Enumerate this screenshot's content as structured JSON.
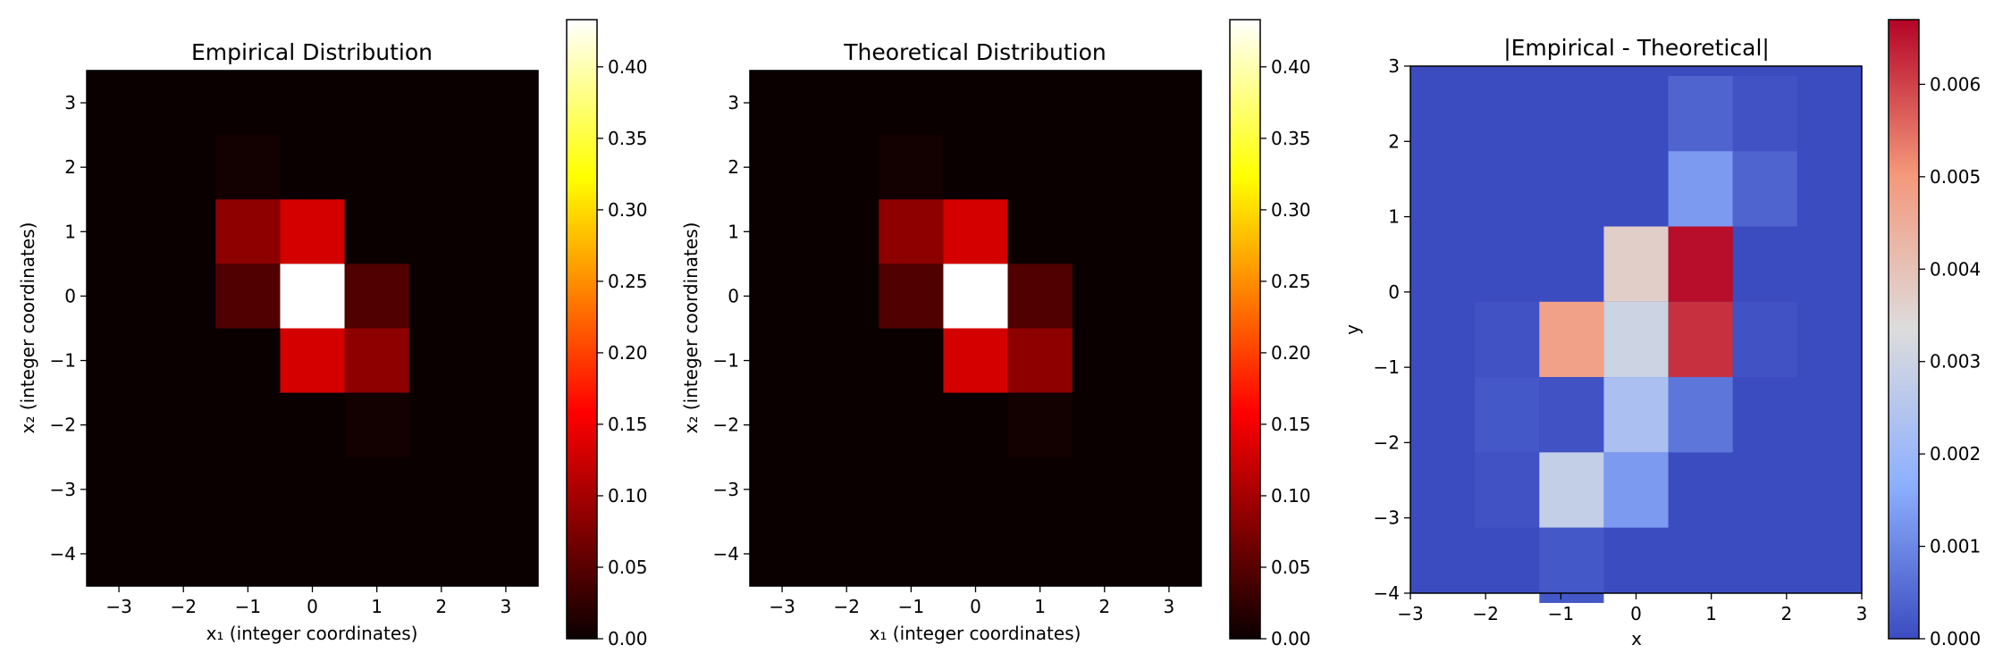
{
  "chart_data": [
    {
      "type": "heatmap",
      "title": "Empirical Distribution",
      "xlabel": "x₁ (integer coordinates)",
      "ylabel": "x₂ (integer coordinates)",
      "xlim": [
        -3.5,
        3.5
      ],
      "ylim": [
        -4.5,
        3.5
      ],
      "xticks": [
        -3,
        -2,
        -1,
        0,
        1,
        2,
        3
      ],
      "yticks": [
        -4,
        -3,
        -2,
        -1,
        0,
        1,
        2,
        3
      ],
      "colormap": "hot",
      "colorbar": {
        "min": 0.0,
        "max": 0.433,
        "ticks": [
          "0.00",
          "0.05",
          "0.10",
          "0.15",
          "0.20",
          "0.25",
          "0.30",
          "0.35",
          "0.40"
        ]
      },
      "grid": false,
      "cells": [
        {
          "x": -1,
          "y": 2,
          "v": 0.005
        },
        {
          "x": -1,
          "y": 1,
          "v": 0.085
        },
        {
          "x": 0,
          "y": 1,
          "v": 0.13
        },
        {
          "x": -1,
          "y": 0,
          "v": 0.045
        },
        {
          "x": 0,
          "y": 0,
          "v": 0.433
        },
        {
          "x": 1,
          "y": 0,
          "v": 0.045
        },
        {
          "x": 0,
          "y": -1,
          "v": 0.13
        },
        {
          "x": 1,
          "y": -1,
          "v": 0.085
        },
        {
          "x": 1,
          "y": -2,
          "v": 0.005
        }
      ]
    },
    {
      "type": "heatmap",
      "title": "Theoretical Distribution",
      "xlabel": "x₁ (integer coordinates)",
      "ylabel": "x₂ (integer coordinates)",
      "xlim": [
        -3.5,
        3.5
      ],
      "ylim": [
        -4.5,
        3.5
      ],
      "xticks": [
        -3,
        -2,
        -1,
        0,
        1,
        2,
        3
      ],
      "yticks": [
        -4,
        -3,
        -2,
        -1,
        0,
        1,
        2,
        3
      ],
      "colormap": "hot",
      "colorbar": {
        "min": 0.0,
        "max": 0.433,
        "ticks": [
          "0.00",
          "0.05",
          "0.10",
          "0.15",
          "0.20",
          "0.25",
          "0.30",
          "0.35",
          "0.40"
        ]
      },
      "grid": false,
      "cells": [
        {
          "x": -1,
          "y": 2,
          "v": 0.005
        },
        {
          "x": -1,
          "y": 1,
          "v": 0.085
        },
        {
          "x": 0,
          "y": 1,
          "v": 0.13
        },
        {
          "x": -1,
          "y": 0,
          "v": 0.045
        },
        {
          "x": 0,
          "y": 0,
          "v": 0.433
        },
        {
          "x": 1,
          "y": 0,
          "v": 0.045
        },
        {
          "x": 0,
          "y": -1,
          "v": 0.13
        },
        {
          "x": 1,
          "y": -1,
          "v": 0.085
        },
        {
          "x": 1,
          "y": -2,
          "v": 0.005
        }
      ]
    },
    {
      "type": "heatmap",
      "title": "|Empirical - Theoretical|",
      "xlabel": "x",
      "ylabel": "y",
      "xlim": [
        -3,
        3
      ],
      "ylim": [
        -4,
        3
      ],
      "xticks": [
        -3,
        -2,
        -1,
        0,
        1,
        2,
        3
      ],
      "yticks": [
        -4,
        -3,
        -2,
        -1,
        0,
        1,
        2,
        3
      ],
      "colormap": "coolwarm",
      "colorbar": {
        "min": 0.0,
        "max": 0.0067,
        "ticks": [
          "0.000",
          "0.001",
          "0.002",
          "0.003",
          "0.004",
          "0.005",
          "0.006"
        ]
      },
      "grid": false,
      "cells": [
        {
          "x": 1,
          "y": 2,
          "v": 0.0004
        },
        {
          "x": 2,
          "y": 2,
          "v": 0.0001
        },
        {
          "x": 1,
          "y": 1,
          "v": 0.0013
        },
        {
          "x": 2,
          "y": 1,
          "v": 0.0004
        },
        {
          "x": 0,
          "y": 0,
          "v": 0.0037
        },
        {
          "x": 1,
          "y": 0,
          "v": 0.0066
        },
        {
          "x": -2,
          "y": -1,
          "v": 0.0001
        },
        {
          "x": -1,
          "y": -1,
          "v": 0.0048
        },
        {
          "x": 0,
          "y": -1,
          "v": 0.003
        },
        {
          "x": 1,
          "y": -1,
          "v": 0.0062
        },
        {
          "x": 2,
          "y": -1,
          "v": 0.0001
        },
        {
          "x": -2,
          "y": -2,
          "v": 0.0002
        },
        {
          "x": -1,
          "y": -2,
          "v": 0.0001
        },
        {
          "x": 0,
          "y": -2,
          "v": 0.0023
        },
        {
          "x": 1,
          "y": -2,
          "v": 0.0007
        },
        {
          "x": -2,
          "y": -3,
          "v": 0.0001
        },
        {
          "x": -1,
          "y": -3,
          "v": 0.0028
        },
        {
          "x": 0,
          "y": -3,
          "v": 0.0013
        },
        {
          "x": -1,
          "y": -4,
          "v": 0.0002
        }
      ]
    }
  ]
}
